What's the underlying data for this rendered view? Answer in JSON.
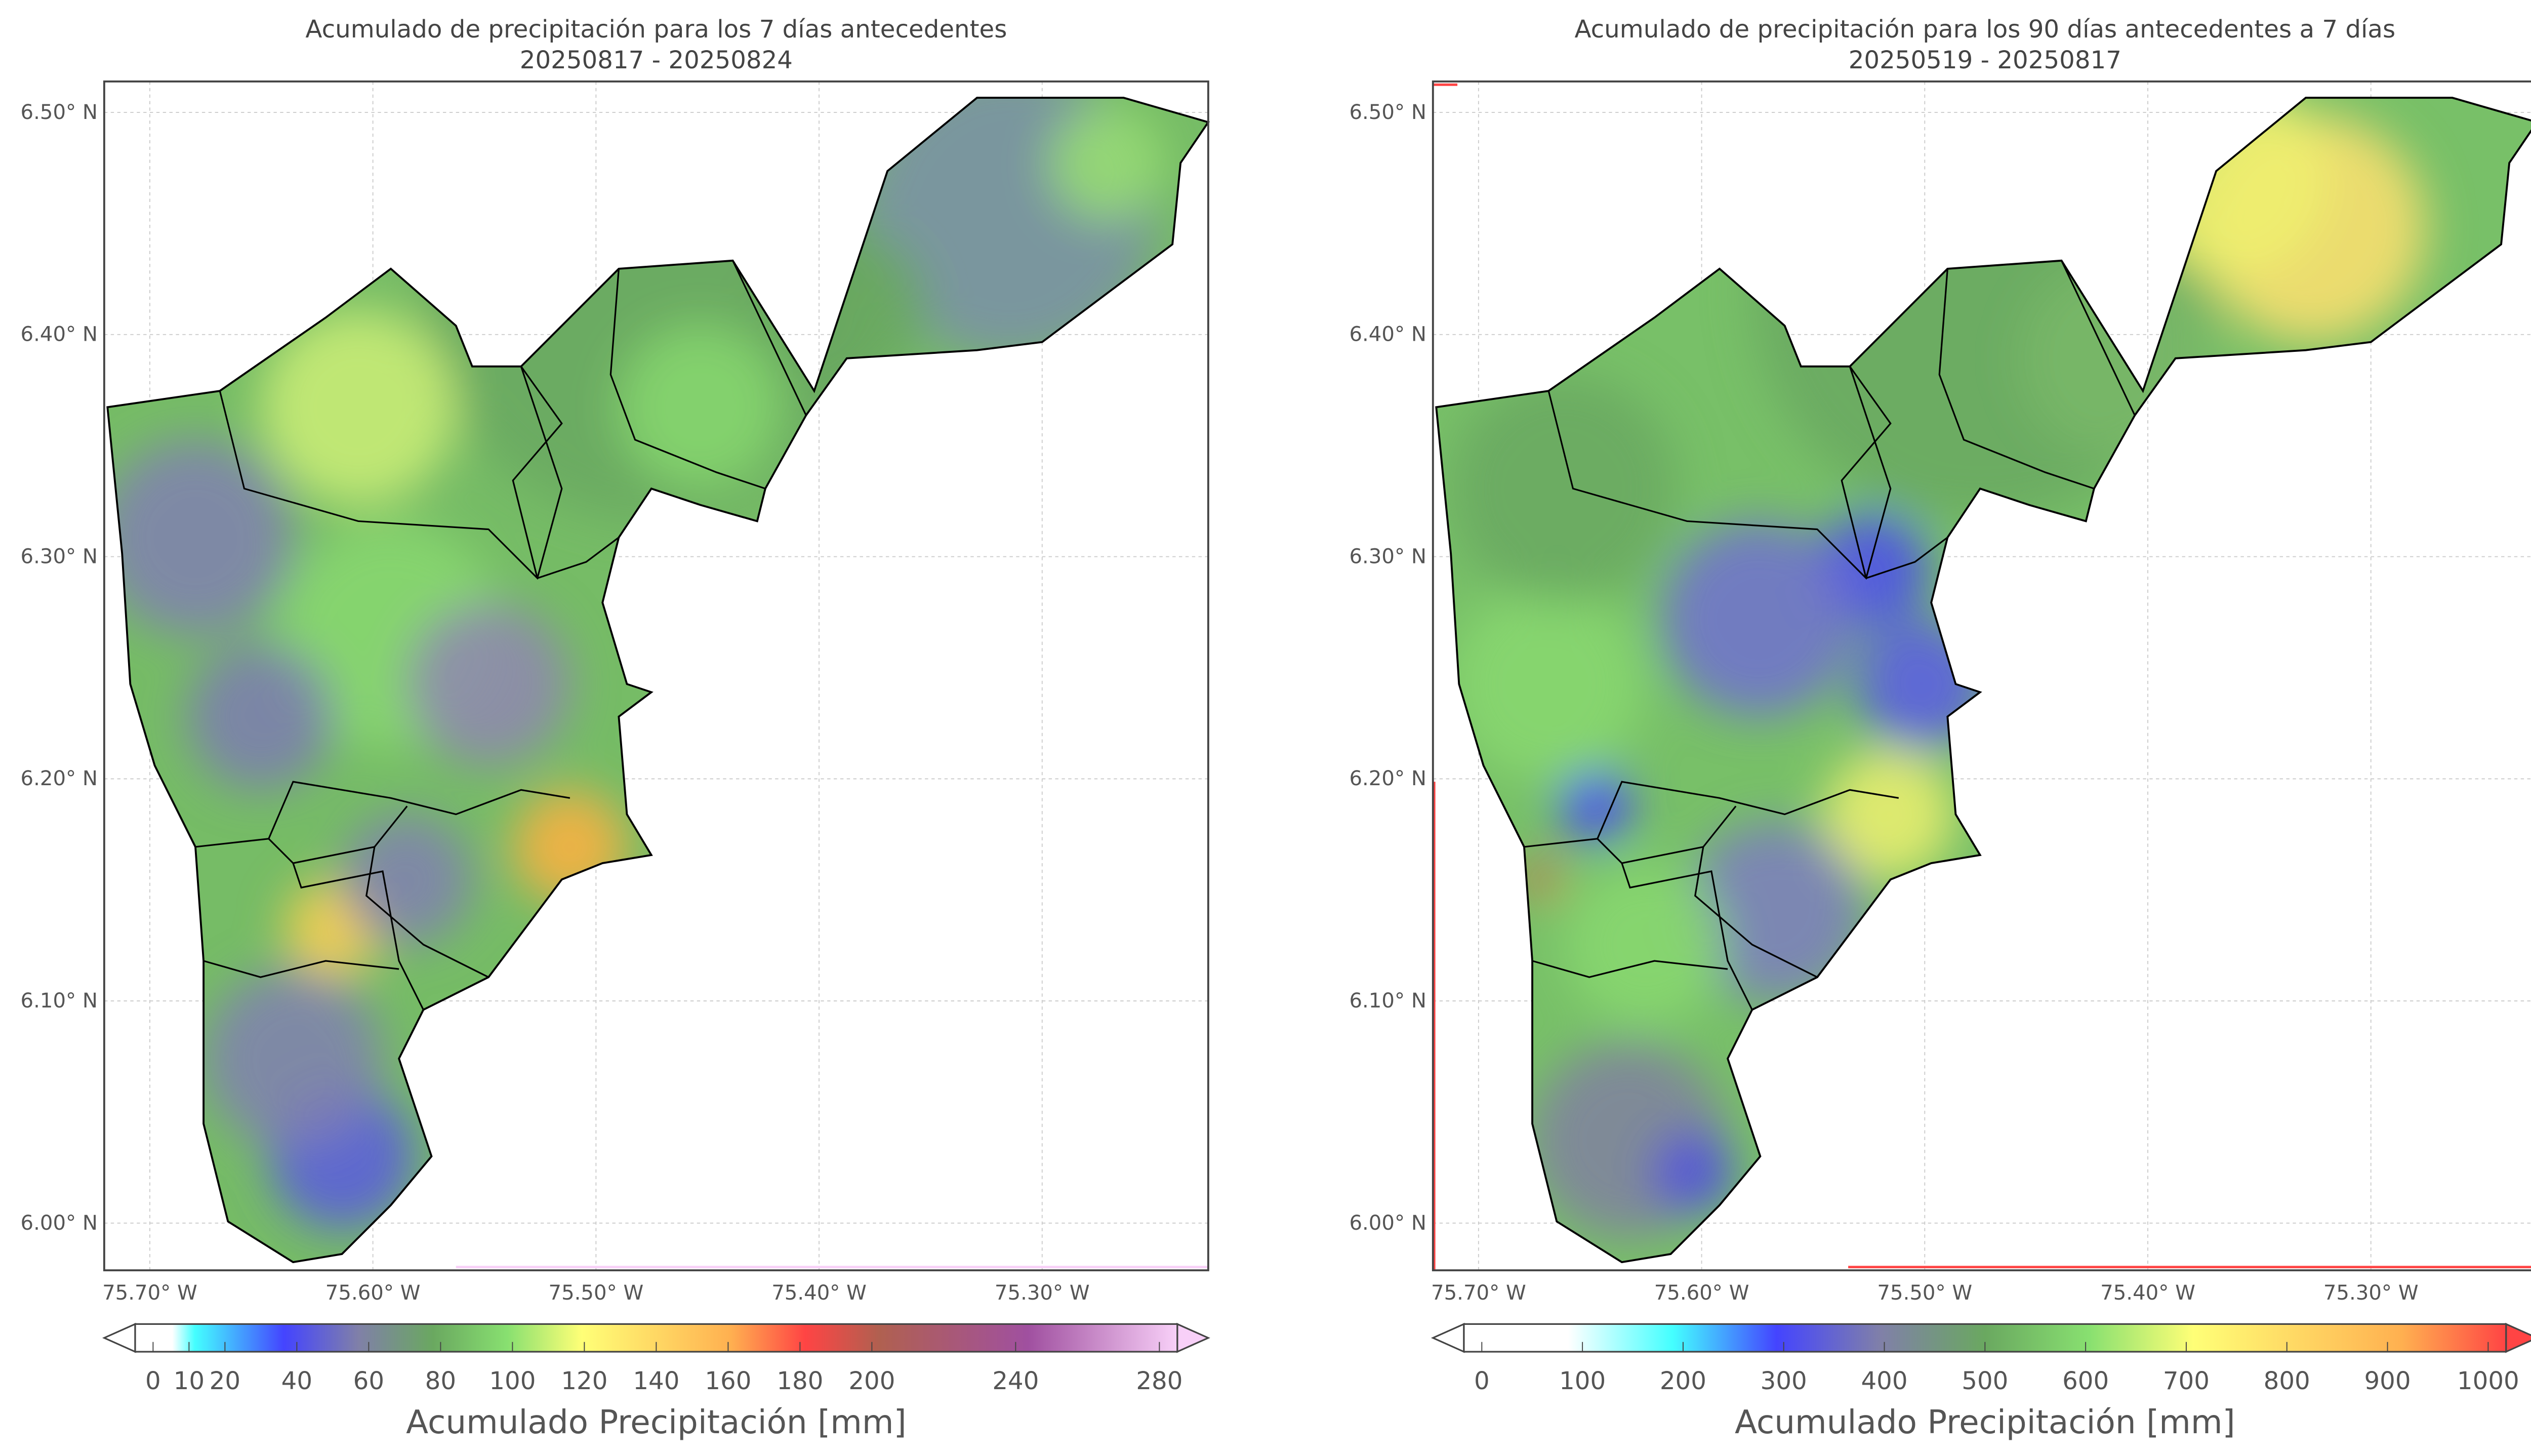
{
  "panels": [
    {
      "title_line1": "Acumulado de precipitación para los 7 días antecedentes",
      "title_line2": "20250817 - 20250824",
      "lat_ticks": [
        "6.50° N",
        "6.40° N",
        "6.30° N",
        "6.20° N",
        "6.10° N",
        "6.00° N"
      ],
      "lon_ticks": [
        "75.70° W",
        "75.60° W",
        "75.50° W",
        "75.40° W",
        "75.30° W"
      ],
      "colorbar": {
        "label": "Acumulado Precipitación [mm]",
        "range": [
          0,
          280
        ],
        "extend": "both",
        "ticks": [
          0,
          10,
          20,
          40,
          60,
          80,
          100,
          120,
          140,
          160,
          180,
          200,
          240,
          280
        ],
        "tick_labels": [
          "0",
          "10",
          "20",
          "40",
          "60",
          "80",
          "100",
          "120",
          "140",
          "160",
          "180",
          "200",
          "240",
          "280"
        ],
        "stops": [
          [
            0,
            "#ffffff"
          ],
          [
            10,
            "#ffffff"
          ],
          [
            16,
            "#44ffff"
          ],
          [
            40,
            "#4444ff"
          ],
          [
            60,
            "#8080a8"
          ],
          [
            80,
            "#6aa860"
          ],
          [
            100,
            "#88e070"
          ],
          [
            120,
            "#ffff77"
          ],
          [
            160,
            "#ffb050"
          ],
          [
            180,
            "#ff4444"
          ],
          [
            200,
            "#b06050"
          ],
          [
            240,
            "#a050a0"
          ],
          [
            280,
            "#f8d0f8"
          ]
        ]
      }
    },
    {
      "title_line1": "Acumulado de precipitación para los 90 días antecedentes a 7 días",
      "title_line2": "20250519 - 20250817",
      "lat_ticks": [
        "6.50° N",
        "6.40° N",
        "6.30° N",
        "6.20° N",
        "6.10° N",
        "6.00° N"
      ],
      "lon_ticks": [
        "75.70° W",
        "75.60° W",
        "75.50° W",
        "75.40° W",
        "75.30° W"
      ],
      "colorbar": {
        "label": "Acumulado Precipitación [mm]",
        "range": [
          0,
          1000
        ],
        "extend": "both",
        "ticks": [
          0,
          100,
          200,
          300,
          400,
          500,
          600,
          700,
          800,
          900,
          1000
        ],
        "tick_labels": [
          "0",
          "100",
          "200",
          "300",
          "400",
          "500",
          "600",
          "700",
          "800",
          "900",
          "1000"
        ],
        "stops": [
          [
            0,
            "#ffffff"
          ],
          [
            100,
            "#ffffff"
          ],
          [
            200,
            "#44ffff"
          ],
          [
            300,
            "#4444ff"
          ],
          [
            400,
            "#8080a8"
          ],
          [
            500,
            "#6aa860"
          ],
          [
            600,
            "#88e070"
          ],
          [
            700,
            "#ffff77"
          ],
          [
            900,
            "#ffb050"
          ],
          [
            1000,
            "#ff4444"
          ]
        ]
      }
    }
  ]
}
